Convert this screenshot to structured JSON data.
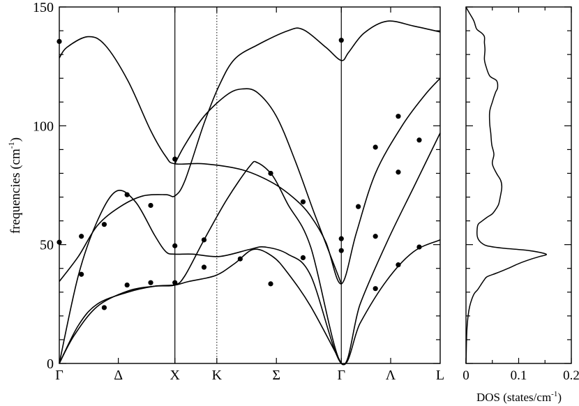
{
  "chart_data": [
    {
      "type": "line",
      "panel": "phonon-dispersion",
      "ylabel": "frequencies (cm",
      "ylabel_sup": "-1",
      "ylabel_close": ")",
      "ylim": [
        0,
        150
      ],
      "yticks": [
        0,
        50,
        100,
        150
      ],
      "xlim": [
        0,
        1
      ],
      "grid": false,
      "high_symmetry_points": [
        {
          "label": "Γ",
          "x": 0.0,
          "style": "axis"
        },
        {
          "label": "Δ",
          "x": 0.155,
          "style": "none"
        },
        {
          "label": "X",
          "x": 0.3035,
          "style": "solid"
        },
        {
          "label": "K",
          "x": 0.4136,
          "style": "dotted"
        },
        {
          "label": "Σ",
          "x": 0.57,
          "style": "none"
        },
        {
          "label": "Γ",
          "x": 0.7404,
          "style": "solid"
        },
        {
          "label": "Λ",
          "x": 0.87,
          "style": "none"
        },
        {
          "label": "L",
          "x": 1.0,
          "style": "axis"
        }
      ],
      "series": [
        {
          "values": [
            [
              0,
              128.5
            ],
            [
              0.02,
              133
            ],
            [
              0.075,
              137.5
            ],
            [
              0.12,
              134
            ],
            [
              0.18,
              119
            ],
            [
              0.24,
              98
            ],
            [
              0.28,
              87
            ],
            [
              0.3035,
              84
            ],
            [
              0.38,
              84
            ],
            [
              0.48,
              81.5
            ],
            [
              0.56,
              76
            ],
            [
              0.62,
              69
            ],
            [
              0.66,
              62
            ],
            [
              0.7,
              51
            ],
            [
              0.7404,
              33.5
            ],
            [
              0.78,
              55
            ],
            [
              0.83,
              80
            ],
            [
              0.9,
              100
            ],
            [
              0.96,
              113
            ],
            [
              1,
              120
            ]
          ]
        },
        {
          "values": [
            [
              0,
              34.5
            ],
            [
              0.05,
              45
            ],
            [
              0.1,
              58
            ],
            [
              0.16,
              66
            ],
            [
              0.22,
              70.5
            ],
            [
              0.28,
              71
            ],
            [
              0.3035,
              70.5
            ],
            [
              0.33,
              77
            ],
            [
              0.38,
              101
            ],
            [
              0.42,
              117
            ],
            [
              0.46,
              128
            ],
            [
              0.52,
              134
            ],
            [
              0.6,
              140
            ],
            [
              0.64,
              140.5
            ],
            [
              0.7,
              133
            ],
            [
              0.7404,
              127.5
            ],
            [
              0.76,
              131
            ],
            [
              0.8,
              139
            ],
            [
              0.86,
              144
            ],
            [
              0.93,
              142
            ],
            [
              1,
              139.5
            ]
          ]
        },
        {
          "values": [
            [
              0,
              0
            ],
            [
              0.05,
              37
            ],
            [
              0.1,
              60
            ],
            [
              0.15,
              72.5
            ],
            [
              0.2,
              68
            ],
            [
              0.25,
              54
            ],
            [
              0.28,
              47
            ],
            [
              0.3035,
              46
            ],
            [
              0.35,
              46
            ],
            [
              0.42,
              45
            ],
            [
              0.5,
              48
            ],
            [
              0.54,
              49
            ],
            [
              0.6,
              46
            ],
            [
              0.66,
              37
            ],
            [
              0.7404,
              0
            ],
            [
              0.79,
              17
            ],
            [
              0.86,
              35
            ],
            [
              0.93,
              47
            ],
            [
              1,
              52
            ]
          ]
        },
        {
          "values": [
            [
              0,
              0
            ],
            [
              0.04,
              12
            ],
            [
              0.1,
              24
            ],
            [
              0.18,
              30.5
            ],
            [
              0.25,
              32.5
            ],
            [
              0.3035,
              33
            ],
            [
              0.33,
              37
            ],
            [
              0.38,
              52
            ],
            [
              0.44,
              69
            ],
            [
              0.5,
              83
            ],
            [
              0.52,
              84.5
            ],
            [
              0.56,
              79
            ],
            [
              0.6,
              67
            ],
            [
              0.66,
              49
            ],
            [
              0.7404,
              0
            ],
            [
              0.79,
              25
            ],
            [
              0.86,
              51
            ],
            [
              0.93,
              74
            ],
            [
              1,
              97
            ]
          ]
        },
        {
          "values": [
            [
              0,
              0
            ],
            [
              0.05,
              16
            ],
            [
              0.1,
              25
            ],
            [
              0.18,
              30
            ],
            [
              0.25,
              32.5
            ],
            [
              0.3035,
              33
            ],
            [
              0.34,
              34.5
            ],
            [
              0.41,
              37
            ],
            [
              0.46,
              42
            ],
            [
              0.51,
              48
            ],
            [
              0.56,
              45
            ],
            [
              0.6,
              38
            ],
            [
              0.66,
              24
            ],
            [
              0.7404,
              0
            ]
          ]
        },
        {
          "values": [
            [
              0.3035,
              84
            ],
            [
              0.33,
              92
            ],
            [
              0.38,
              104
            ],
            [
              0.44,
              113
            ],
            [
              0.48,
              115.5
            ],
            [
              0.52,
              114
            ],
            [
              0.57,
              104
            ],
            [
              0.62,
              85
            ],
            [
              0.67,
              63
            ],
            [
              0.7404,
              33.5
            ]
          ]
        }
      ],
      "points": [
        [
          0,
          135.5
        ],
        [
          0,
          51
        ],
        [
          0.058,
          53.5
        ],
        [
          0.058,
          37.5
        ],
        [
          0.118,
          58.5
        ],
        [
          0.118,
          23.5
        ],
        [
          0.178,
          71
        ],
        [
          0.178,
          33
        ],
        [
          0.24,
          66.5
        ],
        [
          0.24,
          34
        ],
        [
          0.3035,
          86
        ],
        [
          0.3035,
          49.5
        ],
        [
          0.3035,
          34
        ],
        [
          0.38,
          52
        ],
        [
          0.38,
          40.5
        ],
        [
          0.475,
          44
        ],
        [
          0.555,
          80
        ],
        [
          0.555,
          33.5
        ],
        [
          0.64,
          68
        ],
        [
          0.64,
          44.5
        ],
        [
          0.7404,
          136
        ],
        [
          0.7404,
          52.5
        ],
        [
          0.7404,
          47.5
        ],
        [
          0.785,
          66
        ],
        [
          0.83,
          91
        ],
        [
          0.83,
          53.5
        ],
        [
          0.83,
          31.5
        ],
        [
          0.89,
          104
        ],
        [
          0.89,
          80.5
        ],
        [
          0.89,
          41.5
        ],
        [
          0.945,
          94
        ],
        [
          0.945,
          49
        ]
      ]
    },
    {
      "type": "line",
      "panel": "density-of-states",
      "xlabel": "DOS (states/cm",
      "xlabel_sup": "-1",
      "xlabel_close": ")",
      "xlim": [
        0,
        0.2
      ],
      "xticks": [
        "0",
        "0.1",
        "0.2"
      ],
      "ylim": [
        0,
        150
      ],
      "grid": false,
      "series": [
        {
          "values": [
            [
              0.0,
              0
            ],
            [
              0.0005,
              5
            ],
            [
              0.001,
              10
            ],
            [
              0.002,
              15
            ],
            [
              0.004,
              20
            ],
            [
              0.007,
              24
            ],
            [
              0.011,
              27
            ],
            [
              0.016,
              29.5
            ],
            [
              0.022,
              31
            ],
            [
              0.028,
              33
            ],
            [
              0.034,
              35
            ],
            [
              0.04,
              36.5
            ],
            [
              0.058,
              38
            ],
            [
              0.08,
              40
            ],
            [
              0.1,
              42
            ],
            [
              0.125,
              44
            ],
            [
              0.14,
              45
            ],
            [
              0.152,
              46
            ],
            [
              0.12,
              47.5
            ],
            [
              0.07,
              48.5
            ],
            [
              0.04,
              49.5
            ],
            [
              0.028,
              51
            ],
            [
              0.022,
              53
            ],
            [
              0.021,
              56
            ],
            [
              0.023,
              58.5
            ],
            [
              0.031,
              60
            ],
            [
              0.04,
              61.5
            ],
            [
              0.05,
              63
            ],
            [
              0.057,
              65
            ],
            [
              0.062,
              67
            ],
            [
              0.065,
              70
            ],
            [
              0.068,
              74
            ],
            [
              0.066,
              77
            ],
            [
              0.058,
              80
            ],
            [
              0.05,
              84
            ],
            [
              0.053,
              88
            ],
            [
              0.049,
              92
            ],
            [
              0.047,
              97
            ],
            [
              0.045,
              101
            ],
            [
              0.045,
              106
            ],
            [
              0.05,
              110
            ],
            [
              0.056,
              114
            ],
            [
              0.06,
              116
            ],
            [
              0.058,
              119
            ],
            [
              0.045,
              121
            ],
            [
              0.038,
              125
            ],
            [
              0.035,
              128
            ],
            [
              0.036,
              132
            ],
            [
              0.035,
              135
            ],
            [
              0.035,
              137.5
            ],
            [
              0.03,
              139
            ],
            [
              0.021,
              140.5
            ],
            [
              0.018,
              142
            ],
            [
              0.016,
              143.5
            ],
            [
              0.013,
              145
            ],
            [
              0.009,
              146.5
            ],
            [
              0.005,
              148
            ],
            [
              0.0,
              150
            ]
          ]
        }
      ]
    }
  ]
}
